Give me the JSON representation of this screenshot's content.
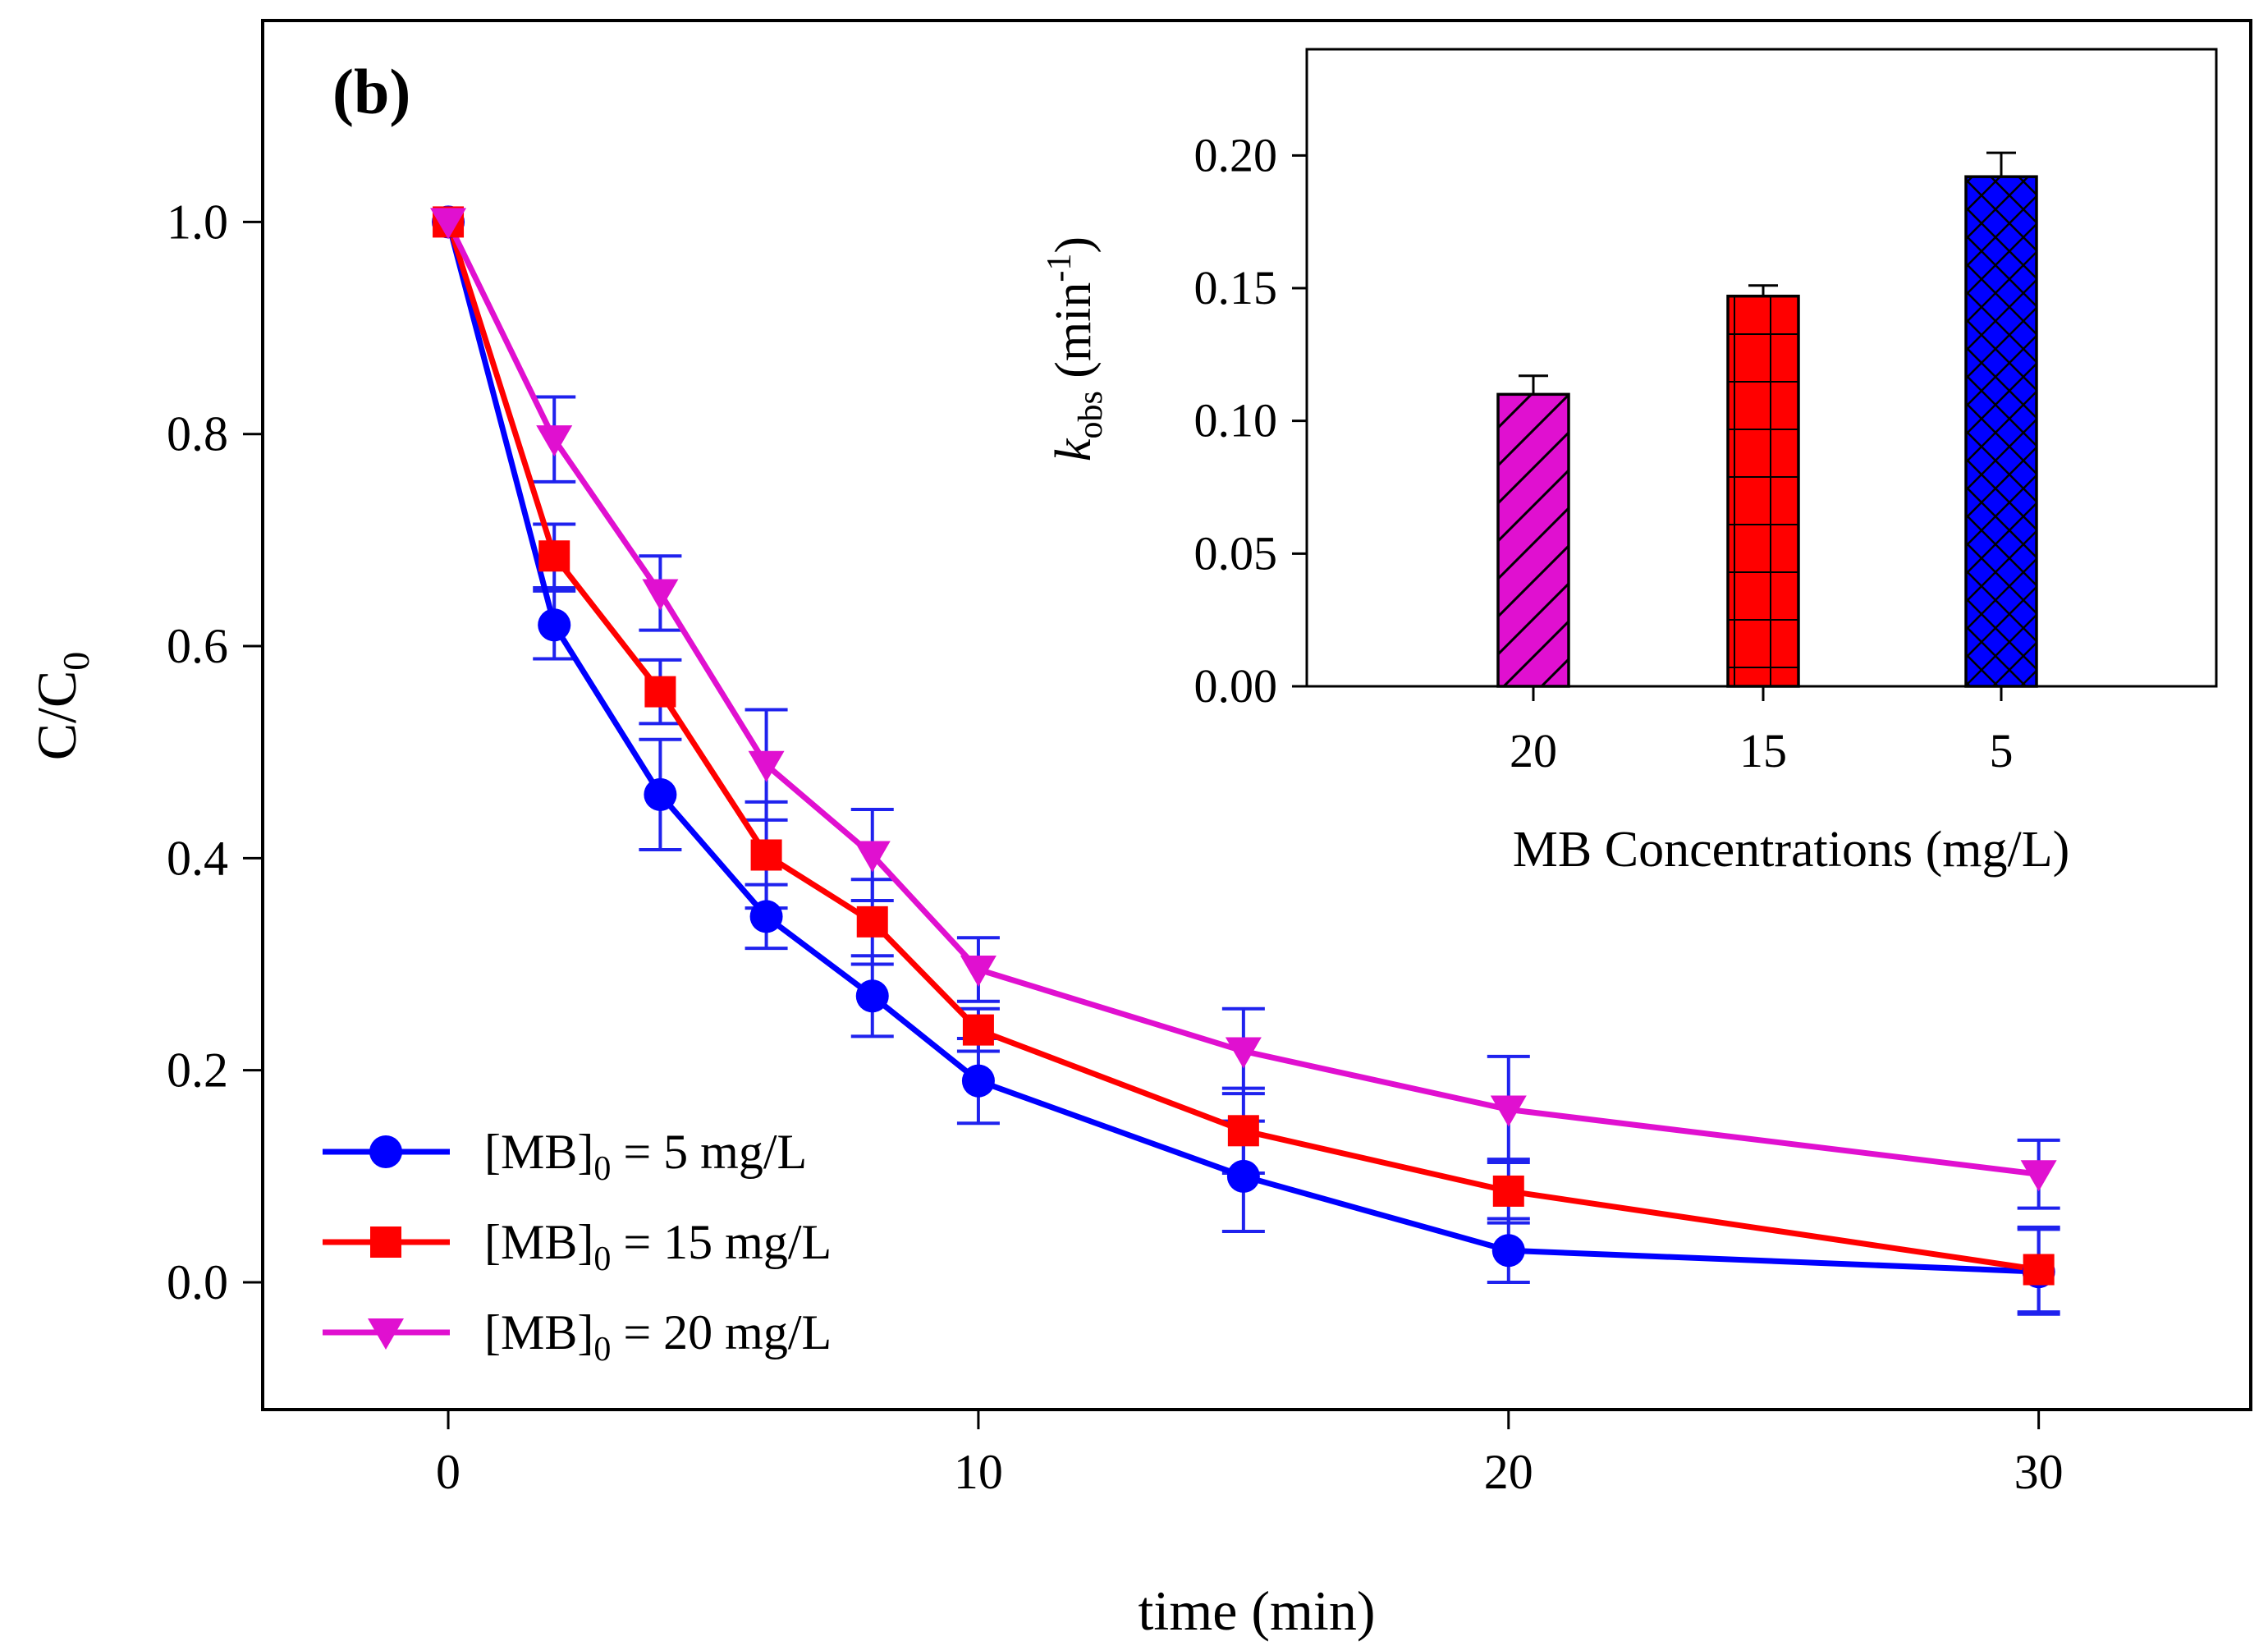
{
  "chart_data": [
    {
      "type": "line",
      "panel_label": "(b)",
      "xlabel": "time (min)",
      "ylabel": "C/C",
      "ylabel_sub": "0",
      "xlim": [
        -3.5,
        34
      ],
      "ylim": [
        -0.12,
        1.19
      ],
      "xticks": [
        0,
        10,
        20,
        30
      ],
      "xtick_labels": [
        "0",
        "10",
        "20",
        "30"
      ],
      "yticks": [
        0.0,
        0.2,
        0.4,
        0.6,
        0.8,
        1.0
      ],
      "ytick_labels": [
        "0.0",
        "0.2",
        "0.4",
        "0.6",
        "0.8",
        "1.0"
      ],
      "grid": false,
      "legend_position": "bottom-left",
      "x": [
        0,
        2,
        4,
        6,
        8,
        10,
        15,
        20,
        30
      ],
      "series": [
        {
          "name_main": "[MB]",
          "name_sub": "0",
          "name_tail": " = 5 mg/L",
          "color": "#0000ff",
          "marker": "circle",
          "values": [
            1.0,
            0.62,
            0.46,
            0.345,
            0.27,
            0.19,
            0.1,
            0.03,
            0.01
          ],
          "errors": [
            0.0,
            0.032,
            0.052,
            0.03,
            0.038,
            0.04,
            0.052,
            0.03,
            0.04
          ]
        },
        {
          "name_main": "[MB]",
          "name_sub": "0",
          "name_tail": " = 15 mg/L",
          "color": "#ff0000",
          "marker": "square",
          "values": [
            1.0,
            0.685,
            0.557,
            0.403,
            0.34,
            0.238,
            0.143,
            0.086,
            0.012
          ],
          "errors": [
            0.0,
            0.03,
            0.03,
            0.05,
            0.04,
            0.02,
            0.04,
            0.03,
            0.04
          ]
        },
        {
          "name_main": "[MB]",
          "name_sub": "0",
          "name_tail": " = 20 mg/L",
          "color": "#e010d0",
          "marker": "triangle-down",
          "values": [
            1.0,
            0.795,
            0.65,
            0.488,
            0.403,
            0.295,
            0.218,
            0.163,
            0.102
          ],
          "errors": [
            0.0,
            0.04,
            0.035,
            0.052,
            0.043,
            0.03,
            0.04,
            0.05,
            0.032
          ]
        }
      ]
    },
    {
      "type": "bar",
      "inset": true,
      "position": "top-right",
      "xlabel": "MB Concentrations (mg/L)",
      "ylabel_italic": "k",
      "ylabel_sub": "obs",
      "ylabel_rest": " (min",
      "ylabel_sup": "-1",
      "ylabel_close": ")",
      "categories": [
        "20",
        "15",
        "5"
      ],
      "values": [
        0.11,
        0.147,
        0.192
      ],
      "errors": [
        0.007,
        0.004,
        0.009
      ],
      "colors": [
        "#e010d0",
        "#ff0000",
        "#0000ff"
      ],
      "patterns": [
        "diagonal-hatch",
        "grid",
        "crosshatch"
      ],
      "ylim": [
        0,
        0.24
      ],
      "yticks": [
        0.0,
        0.05,
        0.1,
        0.15,
        0.2
      ],
      "ytick_labels": [
        "0.00",
        "0.05",
        "0.10",
        "0.15",
        "0.20"
      ]
    }
  ]
}
